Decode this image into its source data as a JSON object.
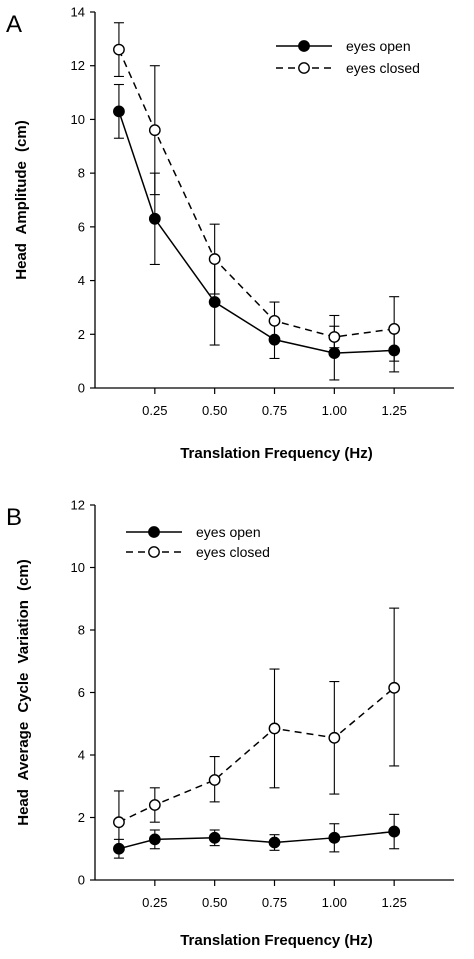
{
  "chart_data": [
    {
      "panel_label": "A",
      "type": "line",
      "title": "",
      "xlabel": "Translation Frequency (Hz)",
      "ylabel": "Head Amplitude (cm)",
      "xlim": [
        0,
        1.5
      ],
      "ylim": [
        0,
        14
      ],
      "x_ticks": [
        0.25,
        0.5,
        0.75,
        1.0,
        1.25
      ],
      "x_tick_labels": [
        "0.25",
        "0.50",
        "0.75",
        "1.00",
        "1.25"
      ],
      "y_ticks": [
        0,
        2,
        4,
        6,
        8,
        10,
        12,
        14
      ],
      "y_tick_labels": [
        "0",
        "2",
        "4",
        "6",
        "8",
        "10",
        "12",
        "14"
      ],
      "legend_position": "top-right",
      "grid": false,
      "error_bars": true,
      "x": [
        0.1,
        0.25,
        0.5,
        0.75,
        1.0,
        1.25
      ],
      "series": [
        {
          "name": "eyes open",
          "marker": "filled-circle",
          "line": "solid",
          "values": [
            10.3,
            6.3,
            3.2,
            1.8,
            1.3,
            1.4
          ],
          "err_low": [
            9.3,
            4.6,
            1.6,
            1.1,
            0.3,
            0.6
          ],
          "err_high": [
            11.3,
            8.0,
            4.9,
            2.6,
            2.3,
            2.2
          ]
        },
        {
          "name": "eyes closed",
          "marker": "open-circle",
          "line": "dashed",
          "values": [
            12.6,
            9.6,
            4.8,
            2.5,
            1.9,
            2.2
          ],
          "err_low": [
            11.6,
            7.2,
            3.5,
            1.8,
            1.5,
            1.0
          ],
          "err_high": [
            13.6,
            12.0,
            6.1,
            3.2,
            2.7,
            3.4
          ]
        }
      ]
    },
    {
      "panel_label": "B",
      "type": "line",
      "title": "",
      "xlabel": "Translation Frequency (Hz)",
      "ylabel": "Head Average Cycle Variation (cm)",
      "xlim": [
        0,
        1.5
      ],
      "ylim": [
        0,
        12
      ],
      "x_ticks": [
        0.25,
        0.5,
        0.75,
        1.0,
        1.25
      ],
      "x_tick_labels": [
        "0.25",
        "0.50",
        "0.75",
        "1.00",
        "1.25"
      ],
      "y_ticks": [
        0,
        2,
        4,
        6,
        8,
        10,
        12
      ],
      "y_tick_labels": [
        "0",
        "2",
        "4",
        "6",
        "8",
        "10",
        "12"
      ],
      "legend_position": "top-left",
      "grid": false,
      "error_bars": true,
      "x": [
        0.1,
        0.25,
        0.5,
        0.75,
        1.0,
        1.25
      ],
      "series": [
        {
          "name": "eyes open",
          "marker": "filled-circle",
          "line": "solid",
          "values": [
            1.0,
            1.3,
            1.35,
            1.2,
            1.35,
            1.55
          ],
          "err_low": [
            0.7,
            1.0,
            1.1,
            0.95,
            0.9,
            1.0
          ],
          "err_high": [
            1.3,
            1.6,
            1.6,
            1.45,
            1.8,
            2.1
          ]
        },
        {
          "name": "eyes closed",
          "marker": "open-circle",
          "line": "dashed",
          "values": [
            1.85,
            2.4,
            3.2,
            4.85,
            4.55,
            6.15
          ],
          "err_low": [
            1.0,
            1.85,
            2.5,
            2.95,
            2.75,
            3.65
          ],
          "err_high": [
            2.85,
            2.95,
            3.95,
            6.75,
            6.35,
            8.7
          ]
        }
      ]
    }
  ]
}
